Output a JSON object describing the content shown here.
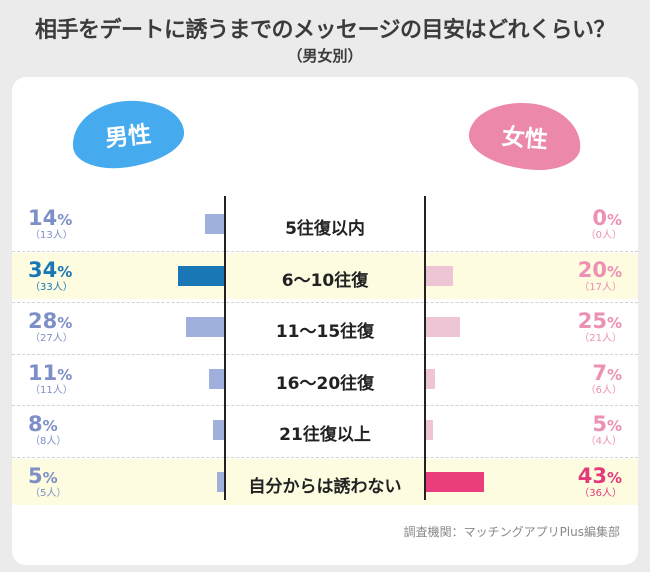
{
  "header": {
    "title": "相手をデートに誘うまでのメッセージの目安はどれくらい？",
    "subtitle": "（男女別）"
  },
  "legend": {
    "male": "男性",
    "female": "女性"
  },
  "colors": {
    "male_blob": "#45aaee",
    "female_blob": "#ec88a9",
    "male_bar": "#9fb0dc",
    "male_bar_highlight": "#1877b4",
    "female_bar": "#edc5d5",
    "female_bar_highlight": "#ea3e7c",
    "male_text": "#7d8fc6",
    "male_text_highlight": "#1877b4",
    "female_text": "#ec90b4",
    "female_text_highlight": "#e23a7a",
    "row_highlight": "#fdfbe0"
  },
  "chart_data": {
    "type": "bar",
    "orientation": "horizontal-butterfly",
    "categories": [
      "5往復以内",
      "6〜10往復",
      "11〜15往復",
      "16〜20往復",
      "21往復以上",
      "自分からは誘わない"
    ],
    "series": [
      {
        "name": "男性",
        "values": [
          14,
          34,
          28,
          11,
          8,
          5
        ],
        "counts": [
          "（13人）",
          "（33人）",
          "（27人）",
          "（11人）",
          "（8人）",
          "（5人）"
        ],
        "highlight_index": 1
      },
      {
        "name": "女性",
        "values": [
          0,
          20,
          25,
          7,
          5,
          43
        ],
        "counts": [
          "（0人）",
          "（17人）",
          "（21人）",
          "（6人）",
          "（4人）",
          "（36人）"
        ],
        "highlight_index": 5
      }
    ],
    "unit": "%",
    "highlighted_rows": [
      1,
      5
    ]
  },
  "footer": {
    "source": "調査機関：マッチングアプリPlus編集部"
  }
}
